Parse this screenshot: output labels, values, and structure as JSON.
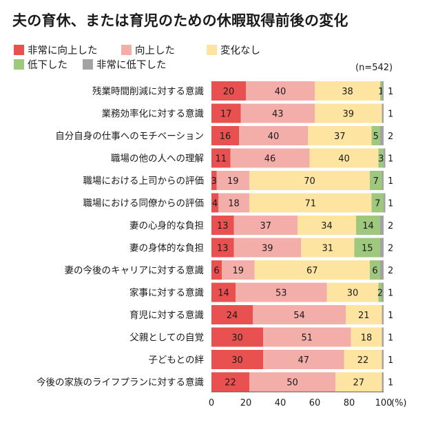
{
  "chart_data": {
    "type": "bar",
    "orientation": "horizontal",
    "stacked": true,
    "title": "夫の育休、または育児のための休暇取得前後の変化",
    "note": "(n=542)",
    "x_unit": "(%)",
    "xlim": [
      0,
      100
    ],
    "xticks": [
      0,
      20,
      40,
      60,
      80,
      100
    ],
    "categories": [
      "残業時間削減に対する意識",
      "業務効率化に対する意識",
      "自分自身の仕事へのモチベーション",
      "職場の他の人への理解",
      "職場における上司からの評価",
      "職場における同僚からの評価",
      "妻の心身的な負担",
      "妻の身体的な負担",
      "妻の今後のキャリアに対する意識",
      "家事に対する意識",
      "育児に対する意識",
      "父親としての自覚",
      "子どもとの絆",
      "今後の家族のライフプランに対する意識"
    ],
    "series": [
      {
        "name": "非常に向上した",
        "color": "#e8514f",
        "values": [
          20,
          17,
          16,
          11,
          3,
          4,
          13,
          13,
          6,
          14,
          24,
          30,
          30,
          22
        ]
      },
      {
        "name": "向上した",
        "color": "#f4aeaa",
        "values": [
          40,
          43,
          40,
          46,
          19,
          18,
          37,
          39,
          19,
          53,
          54,
          51,
          47,
          50
        ]
      },
      {
        "name": "変化なし",
        "color": "#fde4a0",
        "values": [
          38,
          39,
          37,
          40,
          70,
          71,
          34,
          31,
          67,
          30,
          21,
          18,
          22,
          27
        ]
      },
      {
        "name": "低下した",
        "color": "#9dc87e",
        "values": [
          1,
          0,
          5,
          3,
          7,
          7,
          14,
          15,
          6,
          2,
          0,
          0,
          0,
          0
        ]
      },
      {
        "name": "非常に低下した",
        "color": "#a3a3a3",
        "values": [
          1,
          1,
          2,
          1,
          1,
          1,
          2,
          2,
          2,
          1,
          1,
          1,
          1,
          1
        ]
      }
    ],
    "bar_labels": [
      [
        "20",
        "40",
        "38",
        "1",
        "1"
      ],
      [
        "17",
        "43",
        "39",
        "",
        "1"
      ],
      [
        "16",
        "40",
        "37",
        "5",
        "2"
      ],
      [
        "11",
        "46",
        "40",
        "3",
        "1"
      ],
      [
        "3",
        "19",
        "70",
        "7",
        "1"
      ],
      [
        "4",
        "18",
        "71",
        "7",
        "1"
      ],
      [
        "13",
        "37",
        "34",
        "14",
        "2"
      ],
      [
        "13",
        "39",
        "31",
        "15",
        "2"
      ],
      [
        "6",
        "19",
        "67",
        "6",
        "2"
      ],
      [
        "14",
        "53",
        "30",
        "2",
        "1"
      ],
      [
        "24",
        "54",
        "21",
        "",
        "1"
      ],
      [
        "30",
        "51",
        "18",
        "",
        "1"
      ],
      [
        "30",
        "47",
        "22",
        "",
        "1"
      ],
      [
        "22",
        "50",
        "27",
        "",
        "1"
      ]
    ]
  }
}
